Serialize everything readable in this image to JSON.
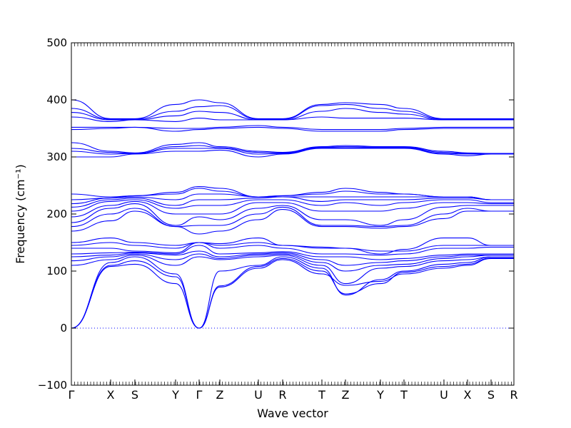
{
  "chart_data": {
    "type": "line",
    "xlabel": "Wave vector",
    "ylabel": "Frequency (cm⁻¹)",
    "ylim": [
      -100,
      500
    ],
    "yticks": [
      -100,
      0,
      100,
      200,
      300,
      400,
      500
    ],
    "xlim": [
      0,
      1
    ],
    "grid": false,
    "zero_line": "dotted",
    "line_color": "#0000ff",
    "kpoints": [
      {
        "label": "Γ",
        "x": 0.0
      },
      {
        "label": "X",
        "x": 0.0887
      },
      {
        "label": "S",
        "x": 0.1435
      },
      {
        "label": "Y",
        "x": 0.2355
      },
      {
        "label": "Γ",
        "x": 0.2887
      },
      {
        "label": "Z",
        "x": 0.3355
      },
      {
        "label": "U",
        "x": 0.4226
      },
      {
        "label": "R",
        "x": 0.4774
      },
      {
        "label": "T",
        "x": 0.5661
      },
      {
        "label": "Z",
        "x": 0.6194
      },
      {
        "label": "Y",
        "x": 0.6984
      },
      {
        "label": "T",
        "x": 0.7516
      },
      {
        "label": "U",
        "x": 0.8419
      },
      {
        "label": "X",
        "x": 0.8952
      },
      {
        "label": "S",
        "x": 0.9484
      },
      {
        "label": "R",
        "x": 1.0
      }
    ],
    "series": [
      {
        "values": [
          0,
          108,
          112,
          78,
          0,
          72,
          105,
          120,
          95,
          75,
          82,
          95,
          105,
          110,
          122,
          122
        ]
      },
      {
        "values": [
          0,
          110,
          118,
          90,
          0,
          74,
          108,
          122,
          100,
          60,
          78,
          98,
          108,
          112,
          123,
          123
        ]
      },
      {
        "values": [
          0,
          115,
          125,
          95,
          0,
          100,
          110,
          125,
          105,
          58,
          85,
          100,
          112,
          115,
          125,
          125
        ]
      },
      {
        "values": [
          110,
          120,
          128,
          110,
          125,
          120,
          125,
          128,
          110,
          78,
          105,
          108,
          118,
          120,
          125,
          125
        ]
      },
      {
        "values": [
          118,
          125,
          130,
          120,
          130,
          122,
          128,
          130,
          115,
          100,
          110,
          112,
          122,
          125,
          128,
          128
        ]
      },
      {
        "values": [
          125,
          128,
          132,
          128,
          135,
          125,
          130,
          132,
          120,
          110,
          115,
          118,
          125,
          128,
          128,
          128
        ]
      },
      {
        "values": [
          130,
          132,
          133,
          130,
          145,
          130,
          132,
          134,
          125,
          125,
          120,
          122,
          128,
          130,
          130,
          130
        ]
      },
      {
        "values": [
          140,
          140,
          135,
          132,
          150,
          140,
          145,
          140,
          130,
          130,
          128,
          130,
          140,
          140,
          142,
          142
        ]
      },
      {
        "values": [
          145,
          150,
          145,
          140,
          150,
          145,
          150,
          145,
          140,
          140,
          135,
          135,
          145,
          145,
          145,
          145
        ]
      },
      {
        "values": [
          150,
          158,
          150,
          145,
          150,
          148,
          158,
          145,
          142,
          140,
          130,
          138,
          158,
          158,
          145,
          145
        ]
      },
      {
        "values": [
          170,
          188,
          205,
          178,
          165,
          170,
          190,
          208,
          178,
          178,
          175,
          178,
          192,
          205,
          205,
          205
        ]
      },
      {
        "values": [
          178,
          200,
          210,
          178,
          180,
          180,
          200,
          212,
          180,
          180,
          178,
          180,
          200,
          210,
          205,
          205
        ]
      },
      {
        "values": [
          185,
          210,
          218,
          180,
          195,
          190,
          210,
          215,
          190,
          190,
          180,
          190,
          212,
          215,
          215,
          215
        ]
      },
      {
        "values": [
          195,
          215,
          222,
          200,
          200,
          200,
          220,
          220,
          205,
          205,
          205,
          210,
          220,
          220,
          218,
          218
        ]
      },
      {
        "values": [
          205,
          222,
          225,
          210,
          215,
          215,
          225,
          225,
          215,
          220,
          215,
          220,
          225,
          225,
          220,
          220
        ]
      },
      {
        "values": [
          212,
          225,
          228,
          215,
          225,
          225,
          228,
          230,
          222,
          225,
          225,
          225,
          228,
          228,
          225,
          225
        ]
      },
      {
        "values": [
          218,
          228,
          230,
          225,
          235,
          235,
          230,
          230,
          230,
          230,
          230,
          230,
          230,
          230,
          225,
          225
        ]
      },
      {
        "values": [
          225,
          228,
          232,
          235,
          245,
          240,
          230,
          232,
          235,
          240,
          235,
          235,
          230,
          230,
          225,
          225
        ]
      },
      {
        "values": [
          235,
          230,
          232,
          238,
          248,
          245,
          230,
          232,
          238,
          245,
          238,
          235,
          230,
          230,
          225,
          225
        ]
      },
      {
        "values": [
          300,
          300,
          305,
          310,
          310,
          312,
          300,
          305,
          315,
          315,
          315,
          315,
          305,
          302,
          305,
          305
        ]
      },
      {
        "values": [
          310,
          305,
          306,
          315,
          315,
          315,
          305,
          306,
          316,
          316,
          316,
          316,
          306,
          305,
          305,
          305
        ]
      },
      {
        "values": [
          315,
          308,
          306,
          318,
          320,
          316,
          308,
          307,
          317,
          318,
          317,
          317,
          308,
          306,
          306,
          306
        ]
      },
      {
        "values": [
          325,
          310,
          307,
          322,
          325,
          318,
          310,
          308,
          318,
          320,
          318,
          318,
          310,
          307,
          306,
          306
        ]
      },
      {
        "values": [
          348,
          350,
          352,
          345,
          348,
          350,
          352,
          350,
          345,
          345,
          345,
          348,
          350,
          350,
          350,
          350
        ]
      },
      {
        "values": [
          352,
          352,
          352,
          350,
          350,
          352,
          355,
          352,
          348,
          348,
          348,
          350,
          352,
          352,
          352,
          352
        ]
      },
      {
        "values": [
          370,
          362,
          365,
          362,
          368,
          365,
          365,
          365,
          370,
          368,
          368,
          368,
          365,
          365,
          365,
          365
        ]
      },
      {
        "values": [
          378,
          365,
          365,
          372,
          380,
          378,
          365,
          365,
          380,
          385,
          378,
          375,
          365,
          365,
          365,
          365
        ]
      },
      {
        "values": [
          385,
          366,
          366,
          380,
          388,
          390,
          366,
          366,
          390,
          392,
          385,
          380,
          366,
          366,
          366,
          366
        ]
      },
      {
        "values": [
          400,
          367,
          367,
          392,
          400,
          395,
          367,
          367,
          392,
          395,
          392,
          385,
          367,
          367,
          367,
          367
        ]
      }
    ]
  }
}
